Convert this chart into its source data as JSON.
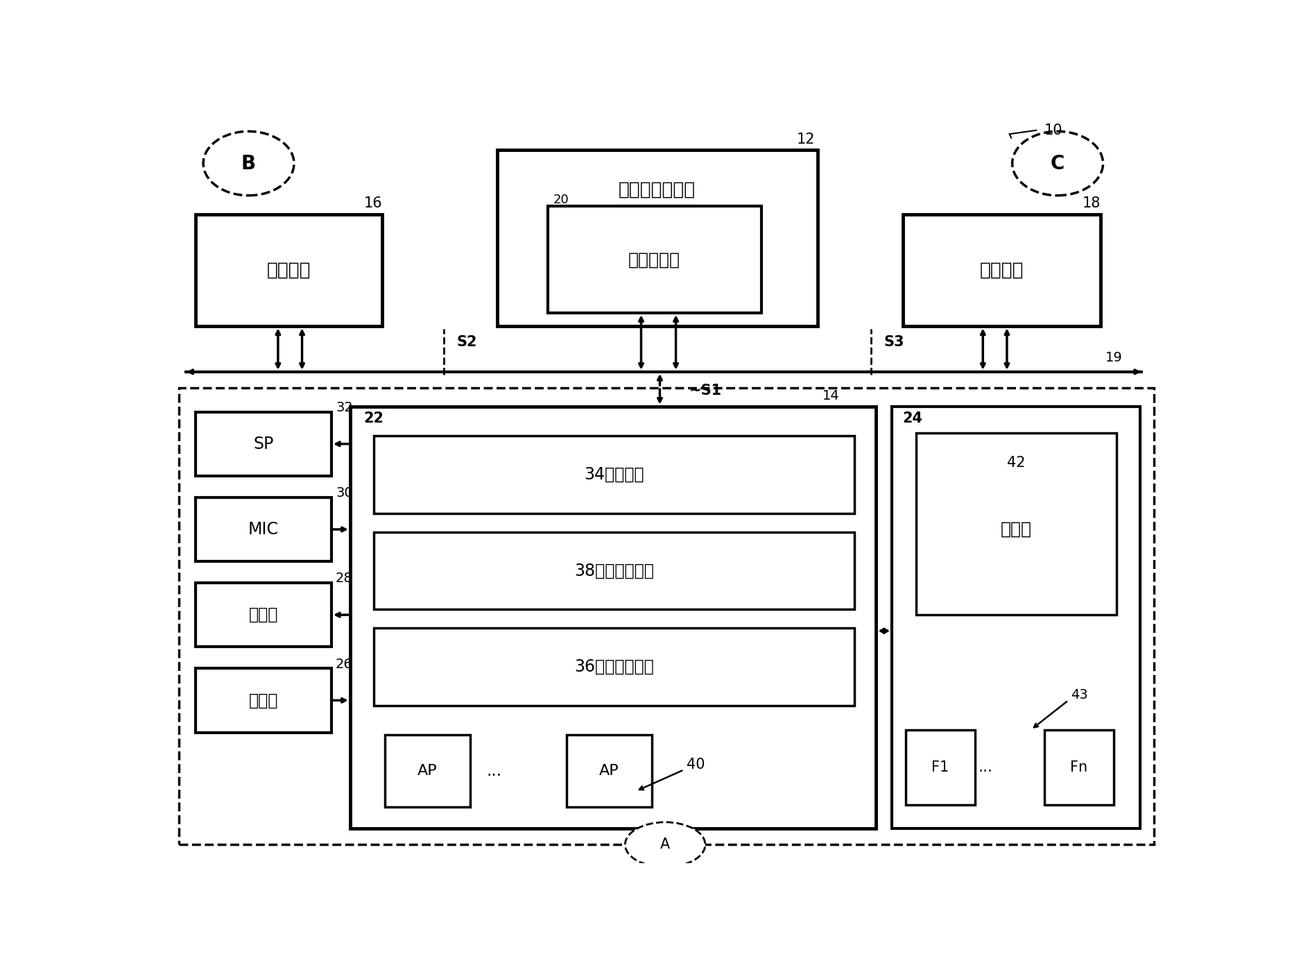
{
  "bg_color": "#ffffff",
  "line_color": "#000000",
  "fig_width": 18.76,
  "fig_height": 13.98,
  "labels": {
    "10": "10",
    "12": "12",
    "14": "14",
    "16": "16",
    "18": "18",
    "19": "19",
    "20": "20",
    "22": "22",
    "24": "24",
    "26": "26",
    "28": "28",
    "30": "30",
    "32": "32",
    "40": "40",
    "42": "42",
    "43": "43",
    "S1": "S1",
    "S2": "S2",
    "S3": "S3",
    "A": "A",
    "B": "B",
    "C": "C",
    "server": "在线会议服务器",
    "image_send": "图像传送部",
    "terminal16": "终端装置",
    "terminal18": "终端装置",
    "SP": "SP",
    "MIC": "MIC",
    "display": "显示器",
    "input": "输入器",
    "comm": "34：通信部",
    "share": "38：共享限刺部",
    "limit": "36：限刺管理部",
    "AP": "AP",
    "mgmt": "管理表",
    "F1": "F1",
    "Fn": "Fn",
    "dots": "..."
  }
}
